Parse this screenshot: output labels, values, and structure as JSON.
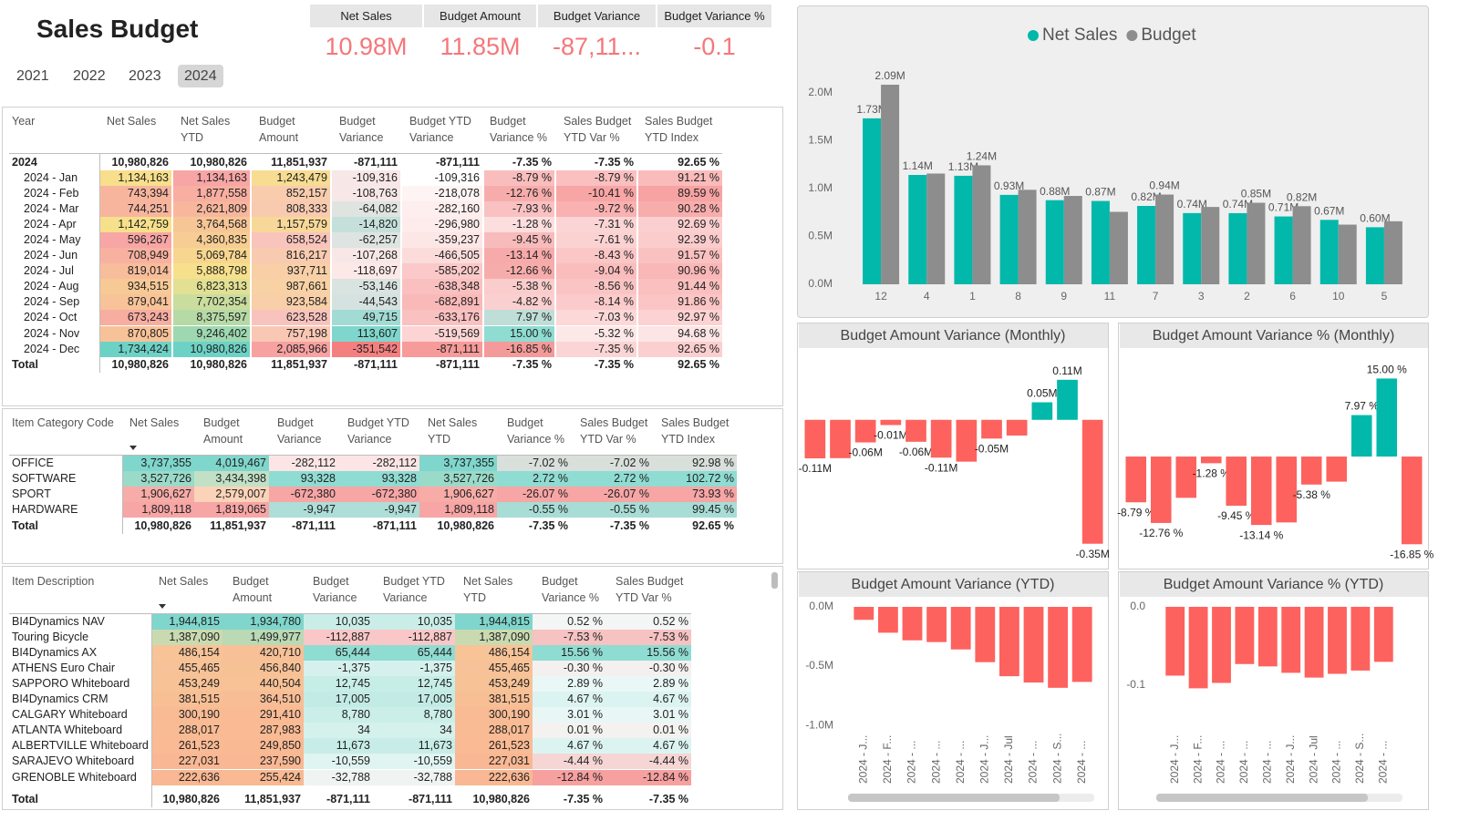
{
  "header": {
    "title": "Sales Budget"
  },
  "slicer": {
    "items": [
      {
        "label": "2021"
      },
      {
        "label": "2022"
      },
      {
        "label": "2023"
      },
      {
        "label": "2024",
        "selected": true
      }
    ]
  },
  "kpis": [
    {
      "label": "Net Sales",
      "value": "10.98M"
    },
    {
      "label": "Budget Amount",
      "value": "11.85M"
    },
    {
      "label": "Budget Variance",
      "value": "-87,11..."
    },
    {
      "label": "Budget Variance %",
      "value": "-0.1"
    }
  ],
  "table1": {
    "columns": [
      "Year",
      "Net Sales",
      "Net Sales YTD",
      "Budget Amount",
      "Budget Variance",
      "Budget YTD Variance",
      "Budget Variance %",
      "Sales Budget YTD Var %",
      "Sales Budget YTD Index"
    ],
    "group": [
      "2024",
      "10,980,826",
      "10,980,826",
      "11,851,937",
      "-871,111",
      "-871,111",
      "-7.35 %",
      "-7.35 %",
      "92.65 %"
    ],
    "rows": [
      [
        "2024 - Jan",
        "1,134,163",
        "1,134,163",
        "1,243,479",
        "-109,316",
        "-109,316",
        "-8.79 %",
        "-8.79 %",
        "91.21 %"
      ],
      [
        "2024 - Feb",
        "743,394",
        "1,877,558",
        "852,157",
        "-108,763",
        "-218,078",
        "-12.76 %",
        "-10.41 %",
        "89.59 %"
      ],
      [
        "2024 - Mar",
        "744,251",
        "2,621,809",
        "808,333",
        "-64,082",
        "-282,160",
        "-7.93 %",
        "-9.72 %",
        "90.28 %"
      ],
      [
        "2024 - Apr",
        "1,142,759",
        "3,764,568",
        "1,157,579",
        "-14,820",
        "-296,980",
        "-1.28 %",
        "-7.31 %",
        "92.69 %"
      ],
      [
        "2024 - May",
        "596,267",
        "4,360,835",
        "658,524",
        "-62,257",
        "-359,237",
        "-9.45 %",
        "-7.61 %",
        "92.39 %"
      ],
      [
        "2024 - Jun",
        "708,949",
        "5,069,784",
        "816,217",
        "-107,268",
        "-466,505",
        "-13.14 %",
        "-8.43 %",
        "91.57 %"
      ],
      [
        "2024 - Jul",
        "819,014",
        "5,888,798",
        "937,711",
        "-118,697",
        "-585,202",
        "-12.66 %",
        "-9.04 %",
        "90.96 %"
      ],
      [
        "2024 - Aug",
        "934,515",
        "6,823,313",
        "987,661",
        "-53,146",
        "-638,348",
        "-5.38 %",
        "-8.56 %",
        "91.44 %"
      ],
      [
        "2024 - Sep",
        "879,041",
        "7,702,354",
        "923,584",
        "-44,543",
        "-682,891",
        "-4.82 %",
        "-8.14 %",
        "91.86 %"
      ],
      [
        "2024 - Oct",
        "673,243",
        "8,375,597",
        "623,528",
        "49,715",
        "-633,176",
        "7.97 %",
        "-7.03 %",
        "92.97 %"
      ],
      [
        "2024 - Nov",
        "870,805",
        "9,246,402",
        "757,198",
        "113,607",
        "-519,569",
        "15.00 %",
        "-5.32 %",
        "94.68 %"
      ],
      [
        "2024 - Dec",
        "1,734,424",
        "10,980,826",
        "2,085,966",
        "-351,542",
        "-871,111",
        "-16.85 %",
        "-7.35 %",
        "92.65 %"
      ]
    ],
    "total": [
      "Total",
      "10,980,826",
      "10,980,826",
      "11,851,937",
      "-871,111",
      "-871,111",
      "-7.35 %",
      "-7.35 %",
      "92.65 %"
    ],
    "heat": [
      null,
      [
        "#f8a5a5",
        "#f7e28a",
        "#6dd2c6"
      ],
      [
        "#f8a5a5",
        "#f7e28a",
        "#6dd2c6"
      ],
      [
        "#f9c3bd",
        "#f7e08a",
        "#f7a1a1"
      ],
      [
        "#f47f7f",
        "#fde8e8",
        "#7fd6cc"
      ],
      [
        "#f79a9a",
        "#fcd9d9",
        "#ffffff"
      ],
      [
        "#f59a9a",
        "#fce0e0",
        "#8fdcd2"
      ],
      [
        "#f8a5a5",
        "#fbd0d0",
        "#fde8e8"
      ],
      [
        "#f7a3a3",
        "#fbc9c9",
        "#fde5e5"
      ]
    ]
  },
  "table2": {
    "columns": [
      "Item Category Code",
      "Net Sales",
      "Budget Amount",
      "Budget Variance",
      "Budget YTD Variance",
      "Net Sales YTD",
      "Budget Variance %",
      "Sales Budget YTD Var %",
      "Sales Budget YTD Index"
    ],
    "rows": [
      [
        "OFFICE",
        "3,737,355",
        "4,019,467",
        "-282,112",
        "-282,112",
        "3,737,355",
        "-7.02 %",
        "-7.02 %",
        "92.98 %"
      ],
      [
        "SOFTWARE",
        "3,527,726",
        "3,434,398",
        "93,328",
        "93,328",
        "3,527,726",
        "2.72 %",
        "2.72 %",
        "102.72 %"
      ],
      [
        "SPORT",
        "1,906,627",
        "2,579,007",
        "-672,380",
        "-672,380",
        "1,906,627",
        "-26.07 %",
        "-26.07 %",
        "73.93 %"
      ],
      [
        "HARDWARE",
        "1,809,118",
        "1,819,065",
        "-9,947",
        "-9,947",
        "1,809,118",
        "-0.55 %",
        "-0.55 %",
        "99.45 %"
      ]
    ],
    "total": [
      "Total",
      "10,980,826",
      "11,851,937",
      "-871,111",
      "-871,111",
      "10,980,826",
      "-7.35 %",
      "-7.35 %",
      "92.65 %"
    ],
    "heat": [
      null,
      [
        "#f7a5a5",
        "#fce8c0",
        "#7fd6cc"
      ],
      [
        "#f7a5a5",
        "#fce8c0",
        "#7fd6cc"
      ],
      [
        "#f7a5a5",
        "#fde5e5",
        "#8fdcd2"
      ],
      [
        "#f7a5a5",
        "#fde5e5",
        "#8fdcd2"
      ],
      [
        "#f7a5a5",
        "#fce8c0",
        "#7fd6cc"
      ],
      [
        "#f7a5a5",
        "#fde0e0",
        "#8fdcd2"
      ],
      [
        "#f7a5a5",
        "#fde0e0",
        "#8fdcd2"
      ],
      [
        "#f7a5a5",
        "#fde0e0",
        "#8fdcd2"
      ]
    ]
  },
  "table3": {
    "columns": [
      "Item Description",
      "Net Sales",
      "Budget Amount",
      "Budget Variance",
      "Budget YTD Variance",
      "Net Sales YTD",
      "Budget Variance %",
      "Sales Budget YTD Var %"
    ],
    "rows": [
      [
        "BI4Dynamics NAV",
        "1,944,815",
        "1,934,780",
        "10,035",
        "10,035",
        "1,944,815",
        "0.52 %",
        "0.52 %"
      ],
      [
        "Touring Bicycle",
        "1,387,090",
        "1,499,977",
        "-112,887",
        "-112,887",
        "1,387,090",
        "-7.53 %",
        "-7.53 %"
      ],
      [
        "BI4Dynamics AX",
        "486,154",
        "420,710",
        "65,444",
        "65,444",
        "486,154",
        "15.56 %",
        "15.56 %"
      ],
      [
        "ATHENS Euro Chair",
        "455,465",
        "456,840",
        "-1,375",
        "-1,375",
        "455,465",
        "-0.30 %",
        "-0.30 %"
      ],
      [
        "SAPPORO Whiteboard",
        "453,249",
        "440,504",
        "12,745",
        "12,745",
        "453,249",
        "2.89 %",
        "2.89 %"
      ],
      [
        "BI4Dynamics CRM",
        "381,515",
        "364,510",
        "17,005",
        "17,005",
        "381,515",
        "4.67 %",
        "4.67 %"
      ],
      [
        "CALGARY Whiteboard",
        "300,190",
        "291,410",
        "8,780",
        "8,780",
        "300,190",
        "3.01 %",
        "3.01 %"
      ],
      [
        "ATLANTA Whiteboard",
        "288,017",
        "287,983",
        "34",
        "34",
        "288,017",
        "0.01 %",
        "0.01 %"
      ],
      [
        "ALBERTVILLE Whiteboard",
        "261,523",
        "249,850",
        "11,673",
        "11,673",
        "261,523",
        "4.67 %",
        "4.67 %"
      ],
      [
        "SARAJEVO Whiteboard",
        "227,031",
        "237,590",
        "-10,559",
        "-10,559",
        "227,031",
        "-4.44 %",
        "-4.44 %"
      ],
      [
        "GRENOBLE Whiteboard",
        "222,636",
        "255,424",
        "-32,788",
        "-32,788",
        "222,636",
        "-12.84 %",
        "-12.84 %"
      ]
    ],
    "total": [
      "Total",
      "10,980,826",
      "11,851,937",
      "-871,111",
      "-871,111",
      "10,980,826",
      "-7.35 %",
      "-7.35 %"
    ],
    "heat": [
      null,
      [
        "#f9b893",
        "#f3dca0",
        "#7fd6cc"
      ],
      [
        "#f9b893",
        "#f3dca0",
        "#7fd6cc"
      ],
      [
        "#f9c7c7",
        "#eef8f6",
        "#8fdcd2"
      ],
      [
        "#f9c7c7",
        "#eef8f6",
        "#8fdcd2"
      ],
      [
        "#f9b893",
        "#f3dca0",
        "#7fd6cc"
      ],
      [
        "#f7a0a0",
        "#f4fbfa",
        "#8fdcd2"
      ],
      [
        "#f7a0a0",
        "#f4fbfa",
        "#8fdcd2"
      ]
    ]
  },
  "chart_data": [
    {
      "type": "bar",
      "categories": [
        "12",
        "4",
        "1",
        "8",
        "9",
        "11",
        "7",
        "3",
        "2",
        "6",
        "10",
        "5"
      ],
      "series": [
        {
          "name": "Net Sales",
          "color": "#01b8aa",
          "values": [
            1.734424,
            1.142759,
            1.134163,
            0.934515,
            0.879041,
            0.870805,
            0.819014,
            0.744251,
            0.743394,
            0.708949,
            0.673243,
            0.596267
          ],
          "value_labels": [
            "1.73M",
            "1.14M",
            "1.13M",
            "0.93M",
            "0.88M",
            "0.87M",
            "0.82M",
            "0.74M",
            "0.74M",
            "0.71M",
            "0.67M",
            "0.60M"
          ]
        },
        {
          "name": "Budget",
          "color": "#8d8d8d",
          "values": [
            2.085966,
            1.157579,
            1.243479,
            0.987661,
            0.923584,
            0.757198,
            0.937711,
            0.808333,
            0.852157,
            0.816217,
            0.623528,
            0.658524
          ],
          "value_labels": [
            "2.09M",
            null,
            "1.24M",
            null,
            null,
            null,
            "0.94M",
            null,
            "0.85M",
            "0.82M",
            null,
            null
          ]
        }
      ],
      "ylim": [
        0,
        2.2
      ],
      "yticks": [
        {
          "value": 0,
          "label": "0.0M"
        },
        {
          "value": 0.5,
          "label": "0.5M"
        },
        {
          "value": 1,
          "label": "1.0M"
        },
        {
          "value": 1.5,
          "label": "1.5M"
        },
        {
          "value": 2,
          "label": "2.0M"
        }
      ],
      "legend": "top"
    },
    {
      "type": "bar",
      "title": "Budget Amount Variance (Monthly)",
      "color": "#fd625e",
      "positive_color": "#01b8aa",
      "values": [
        -0.109316,
        -0.108763,
        -0.064082,
        -0.01482,
        -0.062257,
        -0.107268,
        -0.118697,
        -0.053146,
        -0.044543,
        0.049715,
        0.113607,
        -0.351542
      ],
      "value_labels": [
        "-0.11M",
        null,
        "-0.06M",
        "-0.01M",
        "-0.06M",
        "-0.11M",
        null,
        "-0.05M",
        null,
        "0.05M",
        "0.11M",
        "-0.35M"
      ],
      "ylim": [
        -0.36,
        0.17
      ]
    },
    {
      "type": "bar",
      "title": "Budget Amount Variance % (Monthly)",
      "color": "#fd625e",
      "positive_color": "#01b8aa",
      "values": [
        -8.79,
        -12.76,
        -7.93,
        -1.28,
        -9.45,
        -13.14,
        -12.66,
        -5.38,
        -4.82,
        7.97,
        15.0,
        -16.85
      ],
      "value_labels": [
        "-8.79 %",
        "-12.76 %",
        null,
        "-1.28 %",
        "-9.45 %",
        "-13.14 %",
        null,
        "-5.38 %",
        null,
        "7.97 %",
        "15.00 %",
        "-16.85 %"
      ],
      "ylim": [
        -18.2,
        19.1
      ]
    },
    {
      "type": "bar",
      "title": "Budget Amount Variance (YTD)",
      "color": "#fd625e",
      "categories": [
        "2024 - J...",
        "2024 - F...",
        "2024 - ...",
        "2024 - ...",
        "2024 - ...",
        "2024 - J...",
        "2024 - Jul",
        "2024 - ...",
        "2024 - S...",
        "2024 - ..."
      ],
      "values": [
        -0.109316,
        -0.218078,
        -0.28216,
        -0.29698,
        -0.359237,
        -0.466505,
        -0.585202,
        -0.638348,
        -0.682891,
        -0.633176
      ],
      "ylim": [
        -1.03,
        0.077
      ],
      "yticks": [
        {
          "value": 0,
          "label": "0.0M"
        },
        {
          "value": -0.5,
          "label": "-0.5M"
        },
        {
          "value": -1,
          "label": "-1.0M"
        }
      ]
    },
    {
      "type": "bar",
      "title": "Budget Amount Variance % (YTD)",
      "color": "#fd625e",
      "categories": [
        "2024 - J...",
        "2024 - F...",
        "2024 - ...",
        "2024 - ...",
        "2024 - ...",
        "2024 - J...",
        "2024 - Jul",
        "2024 - ...",
        "2024 - S...",
        "2024 - ..."
      ],
      "values": [
        -0.0879,
        -0.1041,
        -0.0972,
        -0.0731,
        -0.0761,
        -0.0843,
        -0.0904,
        -0.0856,
        -0.0814,
        -0.0703
      ],
      "ylim": [
        -0.156,
        0.0116
      ],
      "yticks": [
        {
          "value": 0,
          "label": "0.0"
        },
        -0.1
      ]
    }
  ]
}
